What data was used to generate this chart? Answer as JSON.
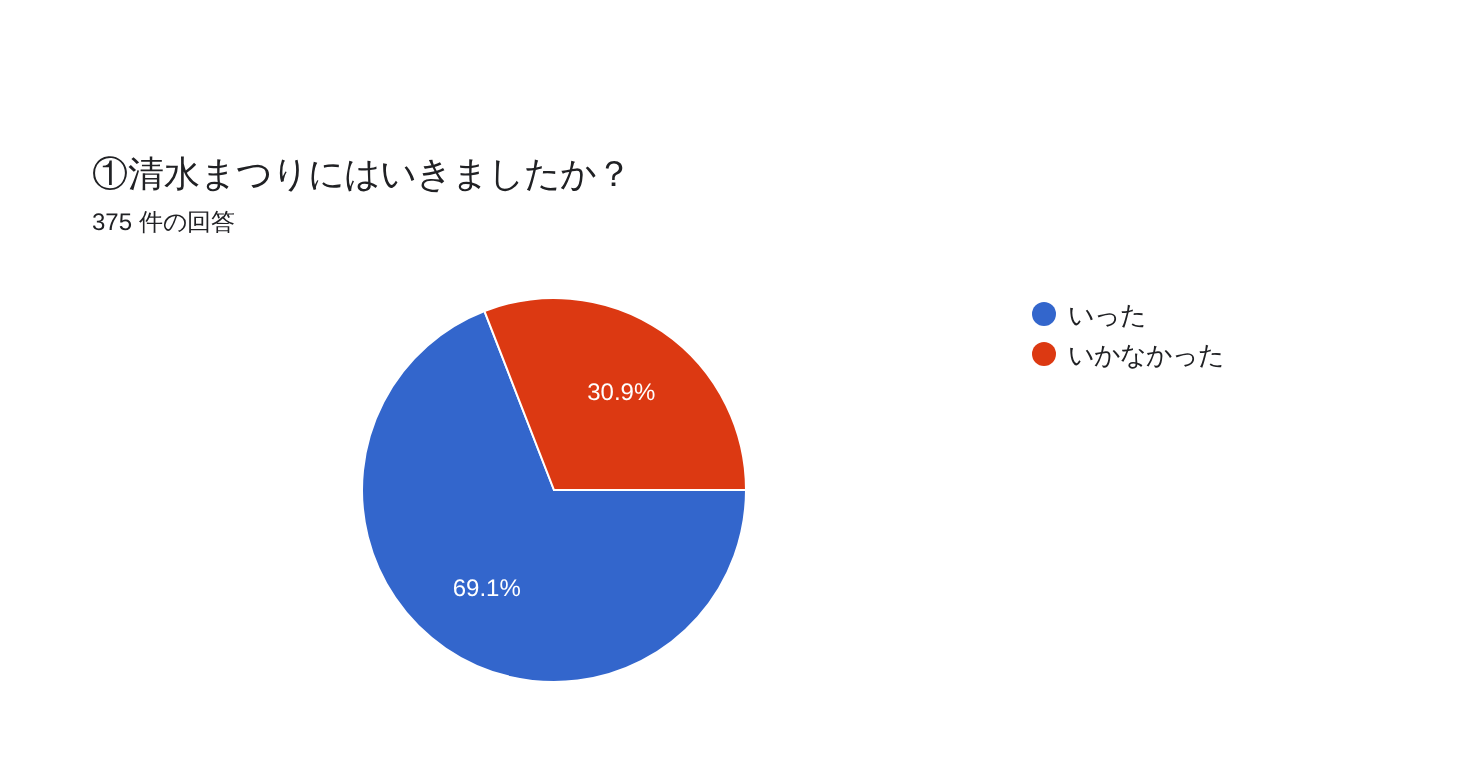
{
  "chart_data": {
    "type": "pie",
    "title": "①清水まつりにはいきましたか？",
    "subtitle": "375 件の回答",
    "categories": [
      "いった",
      "いかなかった"
    ],
    "values": [
      69.1,
      30.9
    ],
    "colors": [
      "#3366cc",
      "#dc3912"
    ],
    "value_labels": [
      "69.1%",
      "30.9%"
    ],
    "legend": "top right"
  }
}
